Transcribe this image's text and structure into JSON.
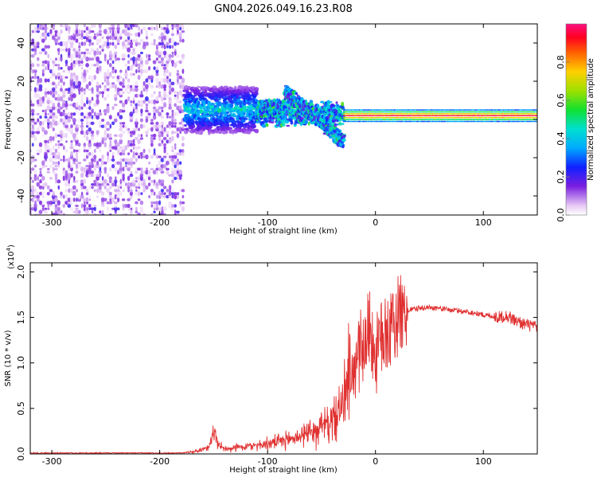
{
  "title": "GN04.2026.049.16.23.R08",
  "chart_data": [
    {
      "type": "heatmap",
      "xlabel": "Height of straight line (km)",
      "ylabel": "Frequency (Hz)",
      "xlim": [
        -320,
        150
      ],
      "ylim": [
        -50,
        50
      ],
      "xticks": [
        -300,
        -200,
        -100,
        0,
        100
      ],
      "yticks": [
        -40,
        -20,
        0,
        20,
        40
      ],
      "grid": false,
      "colorbar": {
        "label": "Normalized spectral amplitude",
        "range": [
          0,
          1
        ],
        "ticks": [
          0.0,
          0.2,
          0.4,
          0.6,
          0.8
        ]
      },
      "regions": [
        {
          "x_range": [
            -320,
            -177
          ],
          "freq_range": [
            -50,
            50
          ],
          "amplitude": [
            0.02,
            0.15
          ]
        },
        {
          "x_range": [
            -177,
            -110
          ],
          "center_freq": 5,
          "spread": 12,
          "amplitude": [
            0.1,
            0.45
          ]
        },
        {
          "x_range": [
            -110,
            -30
          ],
          "freq_track": [
            [
              -85,
              15
            ],
            [
              -30,
              -12
            ]
          ],
          "amplitude": [
            0.15,
            0.5
          ]
        },
        {
          "x_range": [
            -30,
            150
          ],
          "center_freq": 2,
          "spread": 3,
          "amplitude": [
            0.5,
            1.0
          ]
        }
      ]
    },
    {
      "type": "line",
      "xlabel": "Height of straight line (km)",
      "ylabel": "SNR (10 * v/v)",
      "yexponent": "(x10",
      "yexponent_power": "4",
      "yexponent_close": ")",
      "xlim": [
        -320,
        150
      ],
      "ylim": [
        0,
        2.1
      ],
      "xticks": [
        -300,
        -200,
        -100,
        0,
        100
      ],
      "yticks": [
        0.0,
        0.5,
        1.0,
        1.5,
        2.0
      ],
      "ytick_labels": [
        "0.0",
        "0.5",
        "1.0",
        "1.5",
        "2.0"
      ],
      "grid": false,
      "series": [
        {
          "color": "#e03030",
          "x": [
            -320,
            -250,
            -180,
            -165,
            -155,
            -150,
            -148,
            -145,
            -140,
            -130,
            -120,
            -110,
            -100,
            -90,
            -80,
            -70,
            -60,
            -50,
            -40,
            -35,
            -30,
            -25,
            -20,
            -15,
            -10,
            -5,
            0,
            5,
            10,
            15,
            20,
            25,
            30,
            40,
            50,
            60,
            70,
            80,
            90,
            100,
            110,
            115,
            120,
            125,
            130,
            140,
            150
          ],
          "y": [
            0.01,
            0.01,
            0.01,
            0.03,
            0.08,
            0.22,
            0.2,
            0.1,
            0.06,
            0.07,
            0.08,
            0.1,
            0.11,
            0.13,
            0.16,
            0.2,
            0.24,
            0.3,
            0.36,
            0.45,
            0.55,
            0.75,
            0.95,
            1.1,
            1.25,
            1.4,
            1.05,
            1.25,
            1.35,
            1.42,
            1.5,
            1.54,
            1.58,
            1.6,
            1.61,
            1.6,
            1.58,
            1.57,
            1.55,
            1.53,
            1.51,
            1.5,
            1.52,
            1.5,
            1.46,
            1.42,
            1.39
          ]
        }
      ]
    }
  ]
}
